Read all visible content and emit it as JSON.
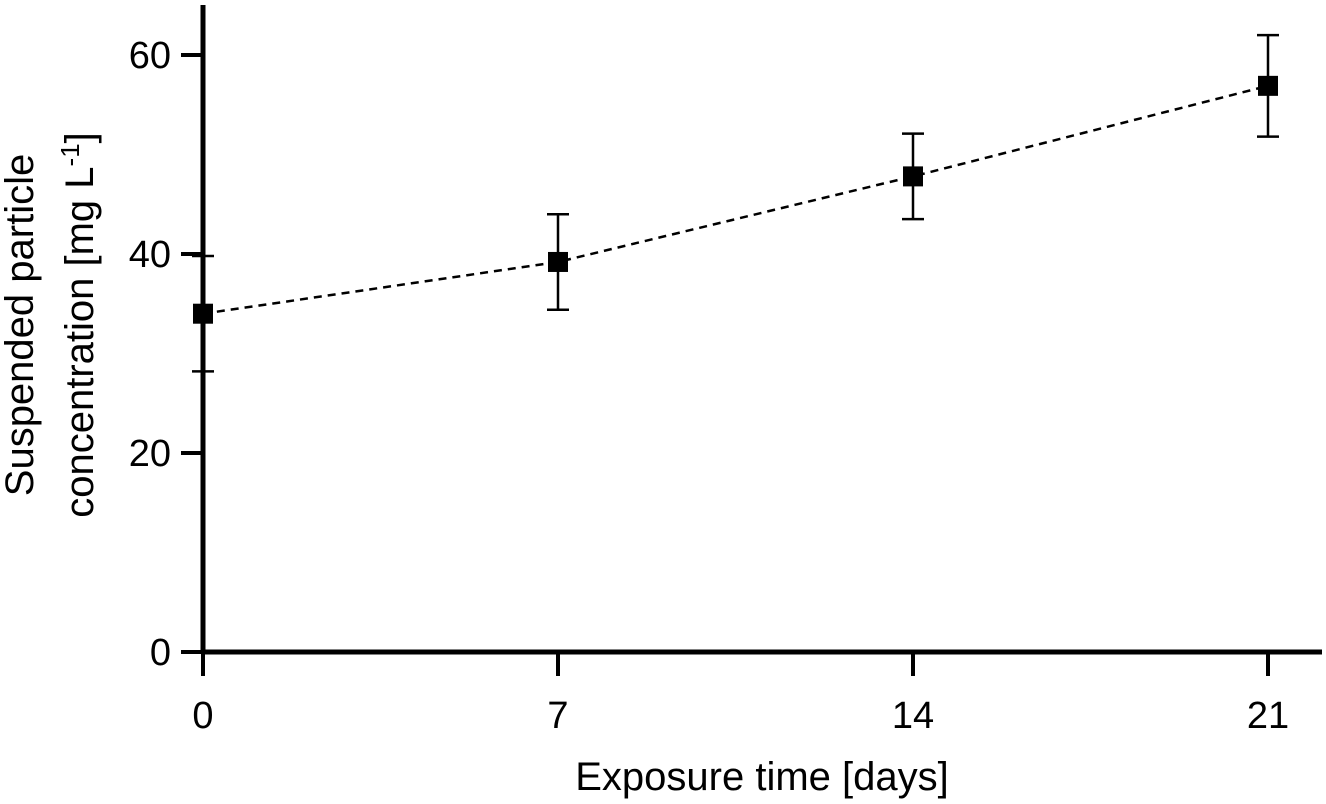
{
  "chart_data": {
    "type": "scatter",
    "title": "",
    "xlabel": "Exposure time [days]",
    "ylabel_line1": "Suspended particle",
    "ylabel_line2_prefix": "concentration [mg L",
    "ylabel_line2_superscript": "-1",
    "ylabel_line2_suffix": "]",
    "x_ticks": [
      0,
      7,
      14,
      21
    ],
    "y_ticks": [
      0,
      20,
      40,
      60
    ],
    "xlim": [
      0,
      21
    ],
    "ylim": [
      0,
      65
    ],
    "grid": false,
    "series": [
      {
        "x": [
          0,
          7,
          14,
          21
        ],
        "y": [
          34,
          39.2,
          47.8,
          56.9
        ],
        "error": [
          5.8,
          4.8,
          4.3,
          5.1
        ],
        "marker": "square",
        "line_style": "dashed",
        "color": "#000000"
      }
    ]
  }
}
